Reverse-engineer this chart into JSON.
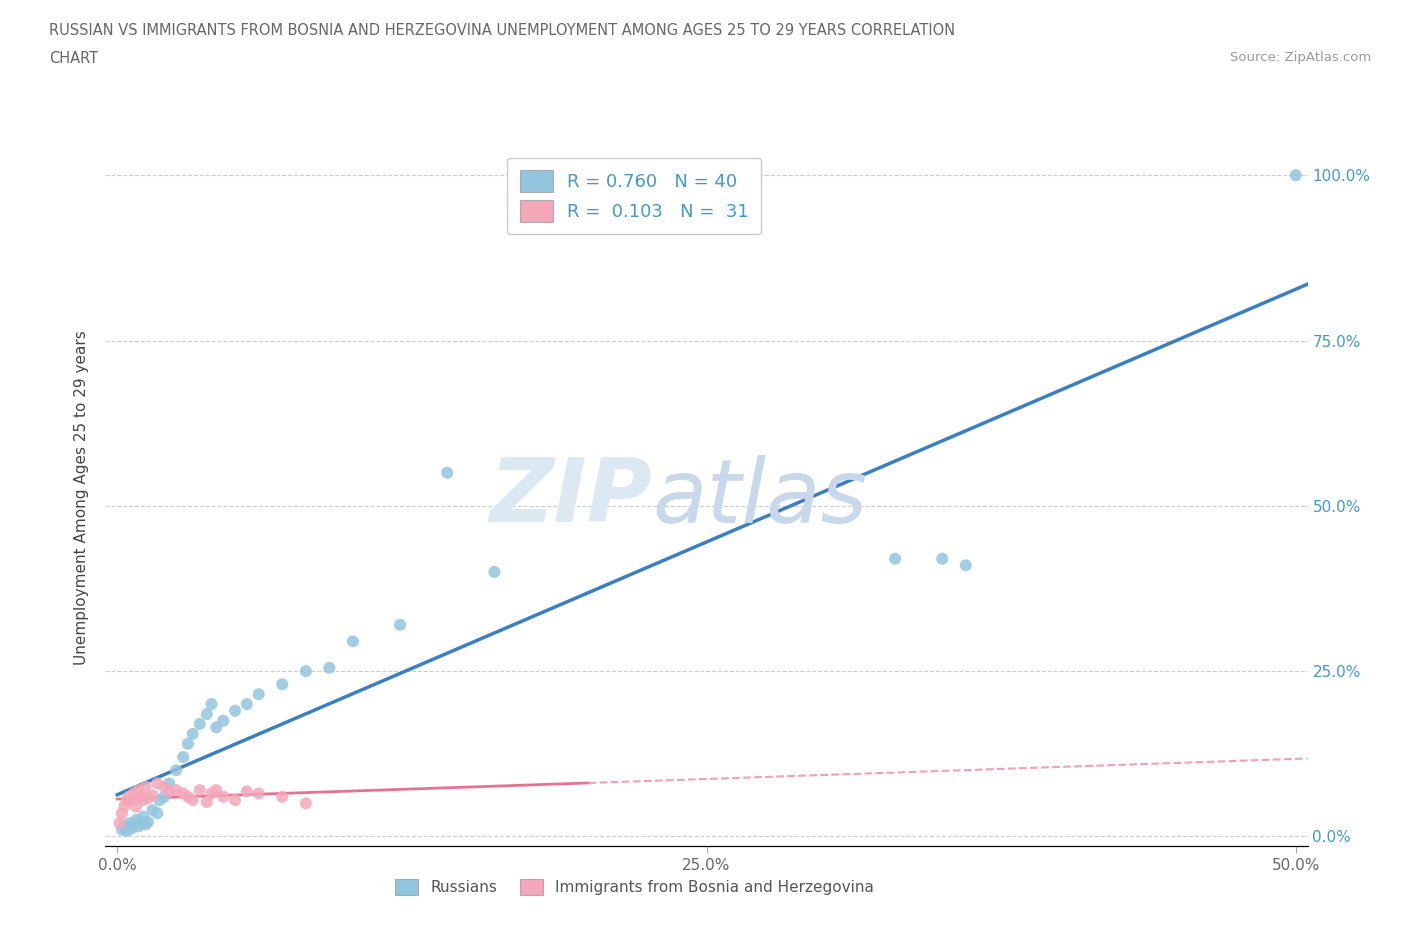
{
  "title_line1": "RUSSIAN VS IMMIGRANTS FROM BOSNIA AND HERZEGOVINA UNEMPLOYMENT AMONG AGES 25 TO 29 YEARS CORRELATION",
  "title_line2": "CHART",
  "source": "Source: ZipAtlas.com",
  "ylabel": "Unemployment Among Ages 25 to 29 years",
  "russian_color": "#92C5DE",
  "bosnian_color": "#F4A7B9",
  "russian_line_color": "#3A7FC1",
  "bosnian_line_solid_color": "#E87090",
  "bosnian_line_dash_color": "#F4A0B0",
  "xlim": [
    -0.005,
    0.505
  ],
  "ylim": [
    -0.015,
    1.04
  ],
  "xticks": [
    0.0,
    0.25,
    0.5
  ],
  "xtick_labels": [
    "0.0%",
    "25.0%",
    "50.0%"
  ],
  "yticks": [
    0.0,
    0.25,
    0.5,
    0.75,
    1.0
  ],
  "ytick_labels_right": [
    "0.0%",
    "25.0%",
    "50.0%",
    "75.0%",
    "100.0%"
  ],
  "legend_label_russian": "Russians",
  "legend_label_bosnian": "Immigrants from Bosnia and Herzegovina",
  "russian_x": [
    0.002,
    0.003,
    0.004,
    0.005,
    0.006,
    0.007,
    0.008,
    0.009,
    0.01,
    0.011,
    0.012,
    0.013,
    0.015,
    0.017,
    0.018,
    0.02,
    0.022,
    0.025,
    0.028,
    0.03,
    0.032,
    0.035,
    0.038,
    0.04,
    0.042,
    0.045,
    0.05,
    0.055,
    0.06,
    0.07,
    0.08,
    0.09,
    0.1,
    0.12,
    0.14,
    0.16,
    0.33,
    0.35,
    0.36,
    0.5
  ],
  "russian_y": [
    0.01,
    0.015,
    0.008,
    0.02,
    0.012,
    0.018,
    0.025,
    0.015,
    0.02,
    0.03,
    0.018,
    0.022,
    0.04,
    0.035,
    0.055,
    0.06,
    0.08,
    0.1,
    0.12,
    0.14,
    0.155,
    0.17,
    0.185,
    0.2,
    0.165,
    0.175,
    0.19,
    0.2,
    0.215,
    0.23,
    0.25,
    0.255,
    0.295,
    0.32,
    0.55,
    0.4,
    0.42,
    0.42,
    0.41,
    1.0
  ],
  "bosnian_x": [
    0.001,
    0.002,
    0.003,
    0.004,
    0.005,
    0.006,
    0.007,
    0.008,
    0.009,
    0.01,
    0.011,
    0.012,
    0.013,
    0.015,
    0.017,
    0.02,
    0.022,
    0.025,
    0.028,
    0.03,
    0.032,
    0.035,
    0.038,
    0.04,
    0.042,
    0.045,
    0.05,
    0.055,
    0.06,
    0.07,
    0.08
  ],
  "bosnian_y": [
    0.02,
    0.035,
    0.045,
    0.055,
    0.06,
    0.055,
    0.065,
    0.045,
    0.07,
    0.06,
    0.055,
    0.075,
    0.058,
    0.062,
    0.08,
    0.075,
    0.068,
    0.07,
    0.065,
    0.06,
    0.055,
    0.07,
    0.052,
    0.065,
    0.07,
    0.06,
    0.055,
    0.068,
    0.065,
    0.06,
    0.05
  ]
}
